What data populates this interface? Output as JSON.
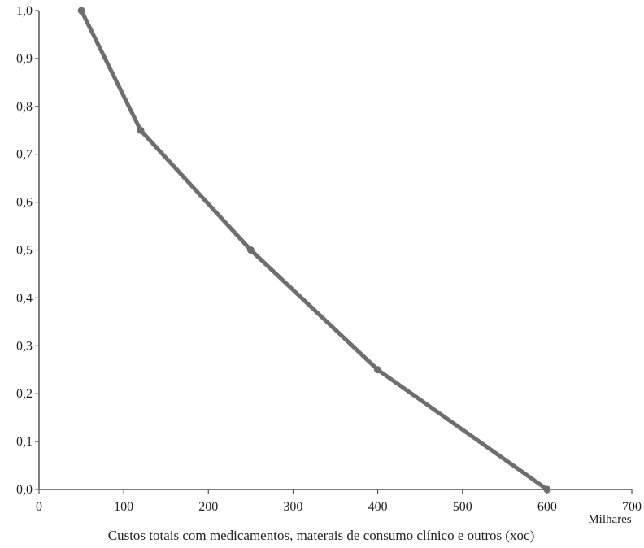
{
  "chart_data": {
    "type": "line",
    "title": "",
    "xlabel": "Custos totais com medicamentos, materais de consumo clínico e outros (xoc)",
    "x_unit_label": "Milhares",
    "ylabel": "",
    "xlim": [
      0,
      700
    ],
    "ylim": [
      0,
      1.0
    ],
    "x_ticks": [
      "0",
      "100",
      "200",
      "300",
      "400",
      "500",
      "600",
      "700"
    ],
    "y_ticks": [
      "0,0",
      "0,1",
      "0,2",
      "0,3",
      "0,4",
      "0,5",
      "0,6",
      "0,7",
      "0,8",
      "0,9",
      "1,0"
    ],
    "grid": false,
    "legend": "none",
    "series": [
      {
        "x": [
          50,
          120,
          250,
          400,
          600
        ],
        "y": [
          1.0,
          0.75,
          0.5,
          0.25,
          0.0
        ],
        "color": "#6e6e6e"
      }
    ]
  }
}
